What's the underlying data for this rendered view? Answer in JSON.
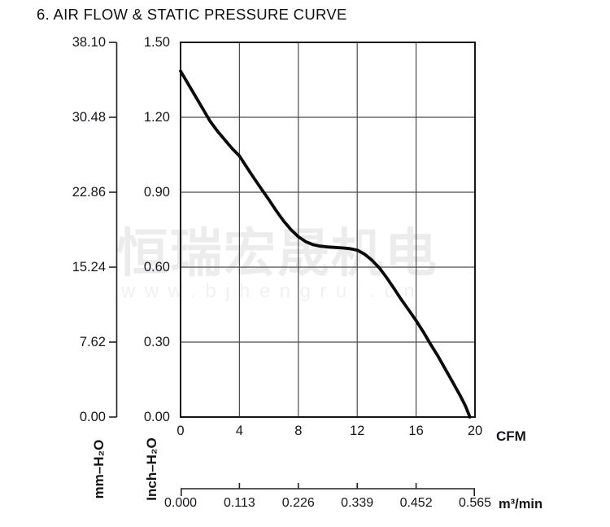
{
  "title": "6. AIR FLOW & STATIC PRESSURE CURVE",
  "watermark": {
    "cjk": "恒瑞宏晟机电",
    "url": "www.bjhengrui.cn"
  },
  "chart_data": {
    "type": "line",
    "title": "6. AIR FLOW & STATIC PRESSURE CURVE",
    "grid": true,
    "x_axes": [
      {
        "label": "CFM",
        "ticks": [
          "0",
          "4",
          "8",
          "12",
          "16",
          "20"
        ],
        "range": [
          0,
          20
        ]
      },
      {
        "label": "m³/min",
        "ticks": [
          "0.000",
          "0.113",
          "0.226",
          "0.339",
          "0.452",
          "0.565"
        ],
        "range": [
          0,
          0.565
        ]
      }
    ],
    "y_axes": [
      {
        "label": "mm–H₂O",
        "ticks": [
          "38.10",
          "30.48",
          "22.86",
          "15.24",
          "7.62",
          "0.00"
        ],
        "range": [
          0,
          38.1
        ]
      },
      {
        "label": "Inch–H₂O",
        "ticks": [
          "1.50",
          "1.20",
          "0.90",
          "0.60",
          "0.30",
          "0.00"
        ],
        "range": [
          0,
          1.5
        ]
      }
    ],
    "series": [
      {
        "name": "static-pressure-curve",
        "x_unit": "CFM",
        "y_unit": "Inch-H2O",
        "points": [
          [
            0,
            1.385
          ],
          [
            0.5,
            1.335
          ],
          [
            1,
            1.285
          ],
          [
            1.5,
            1.235
          ],
          [
            2,
            1.185
          ],
          [
            2.5,
            1.145
          ],
          [
            3,
            1.11
          ],
          [
            3.5,
            1.075
          ],
          [
            4,
            1.045
          ],
          [
            4.5,
            1.0
          ],
          [
            5,
            0.955
          ],
          [
            5.5,
            0.912
          ],
          [
            6,
            0.87
          ],
          [
            6.5,
            0.826
          ],
          [
            7,
            0.785
          ],
          [
            7.5,
            0.75
          ],
          [
            8,
            0.722
          ],
          [
            8.5,
            0.702
          ],
          [
            9,
            0.69
          ],
          [
            9.5,
            0.684
          ],
          [
            10,
            0.681
          ],
          [
            10.5,
            0.679
          ],
          [
            11,
            0.677
          ],
          [
            11.5,
            0.674
          ],
          [
            12,
            0.668
          ],
          [
            12.5,
            0.652
          ],
          [
            13,
            0.628
          ],
          [
            13.5,
            0.597
          ],
          [
            14,
            0.558
          ],
          [
            14.5,
            0.515
          ],
          [
            15,
            0.47
          ],
          [
            15.5,
            0.428
          ],
          [
            16,
            0.386
          ],
          [
            16.5,
            0.34
          ],
          [
            17,
            0.29
          ],
          [
            17.5,
            0.242
          ],
          [
            18,
            0.19
          ],
          [
            18.5,
            0.138
          ],
          [
            19,
            0.085
          ],
          [
            19.35,
            0.045
          ],
          [
            19.65,
            0
          ]
        ]
      }
    ],
    "colors": {
      "curve": "#0a0a0a",
      "grid": "#4b4b4b",
      "frame": "#161616",
      "text": "#16161d",
      "watermark": "#ececec"
    }
  }
}
